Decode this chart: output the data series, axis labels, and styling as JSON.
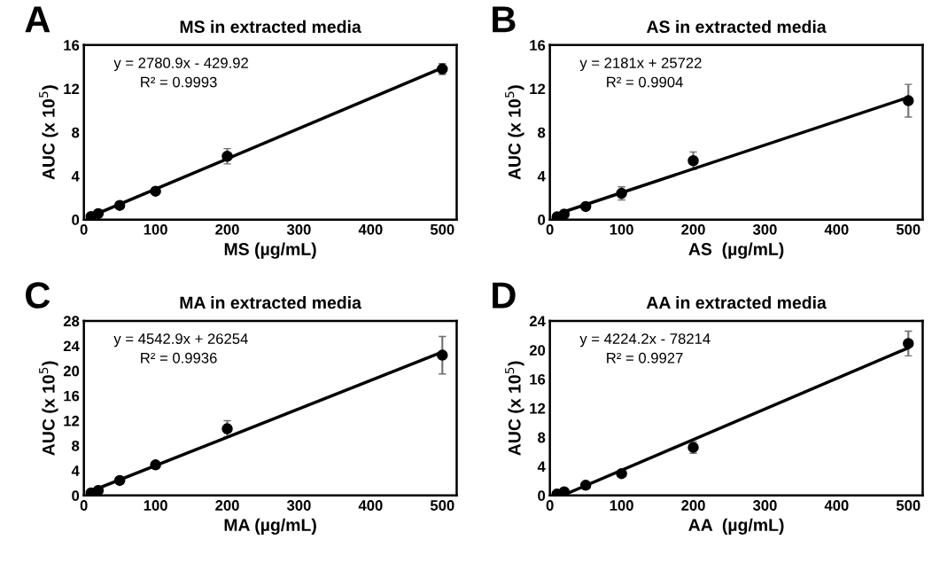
{
  "chart_data": [
    {
      "type": "scatter",
      "title": "MS in extracted media",
      "xlabel": "MS (µg/mL)",
      "ylabel": "AUC (x 10$^{5}$)",
      "annotations": [
        "A",
        "y = 2780.9x - 429.92",
        "R² = 0.9993"
      ],
      "xlim": [
        0,
        520
      ],
      "xticks": [
        0,
        100,
        200,
        300,
        400,
        500
      ],
      "ylim": [
        0,
        16
      ],
      "yticks": [
        0,
        4,
        8,
        12,
        16
      ],
      "legend": false,
      "series": [
        {
          "color": "#000000",
          "marker": "circle",
          "x": [
            10,
            20,
            50,
            100,
            200,
            500
          ],
          "values": [
            0.28,
            0.55,
            1.3,
            2.6,
            5.8,
            13.8
          ],
          "errors": [
            null,
            null,
            null,
            null,
            0.7,
            0.5
          ]
        },
        {
          "type": "line",
          "marker": "none",
          "color": "#000000",
          "x": [
            10,
            500
          ],
          "values": [
            0.3,
            13.9
          ]
        }
      ]
    },
    {
      "type": "scatter",
      "title": "AS in extracted media",
      "xlabel": "AS  (µg/mL)",
      "ylabel": "AUC (x 10$^{5}$)",
      "annotations": [
        "B",
        "y = 2181x + 25722",
        "R² = 0.9904"
      ],
      "xlim": [
        0,
        520
      ],
      "xticks": [
        0,
        100,
        200,
        300,
        400,
        500
      ],
      "ylim": [
        0,
        16
      ],
      "yticks": [
        0,
        4,
        8,
        12,
        16
      ],
      "legend": false,
      "series": [
        {
          "color": "#000000",
          "marker": "circle",
          "x": [
            10,
            20,
            50,
            100,
            200,
            500
          ],
          "values": [
            0.25,
            0.5,
            1.2,
            2.4,
            5.4,
            10.9
          ],
          "errors": [
            null,
            null,
            null,
            0.6,
            0.8,
            1.5
          ]
        },
        {
          "type": "line",
          "marker": "none",
          "color": "#000000",
          "x": [
            10,
            500
          ],
          "values": [
            0.5,
            11.2
          ]
        }
      ]
    },
    {
      "type": "scatter",
      "title": "MA in extracted media",
      "xlabel": "MA (µg/mL)",
      "ylabel": "AUC (x 10$^{5}$)",
      "annotations": [
        "C",
        "y = 4542.9x + 26254",
        "R² = 0.9936"
      ],
      "xlim": [
        0,
        520
      ],
      "xticks": [
        0,
        100,
        200,
        300,
        400,
        500
      ],
      "ylim": [
        0,
        28
      ],
      "yticks": [
        0,
        4,
        8,
        12,
        16,
        20,
        24,
        28
      ],
      "legend": false,
      "series": [
        {
          "color": "#000000",
          "marker": "circle",
          "x": [
            10,
            20,
            50,
            100,
            200,
            500
          ],
          "values": [
            0.4,
            0.8,
            2.4,
            4.9,
            10.7,
            22.5
          ],
          "errors": [
            null,
            null,
            null,
            null,
            1.3,
            3.0
          ]
        },
        {
          "type": "line",
          "marker": "none",
          "color": "#000000",
          "x": [
            10,
            500
          ],
          "values": [
            0.7,
            23.0
          ]
        }
      ]
    },
    {
      "type": "scatter",
      "title": "AA in extracted media",
      "xlabel": "AA  (µg/mL)",
      "ylabel": "AUC (x 10$^{5}$)",
      "annotations": [
        "D",
        "y = 4224.2x - 78214",
        "R² = 0.9927"
      ],
      "xlim": [
        0,
        520
      ],
      "xticks": [
        0,
        100,
        200,
        300,
        400,
        500
      ],
      "ylim": [
        0,
        24
      ],
      "yticks": [
        0,
        4,
        8,
        12,
        16,
        20,
        24
      ],
      "legend": false,
      "series": [
        {
          "color": "#000000",
          "marker": "circle",
          "x": [
            10,
            20,
            50,
            100,
            200,
            500
          ],
          "values": [
            0.2,
            0.5,
            1.4,
            3.0,
            6.6,
            20.9
          ],
          "errors": [
            null,
            null,
            null,
            null,
            0.8,
            1.7
          ]
        },
        {
          "type": "line",
          "marker": "none",
          "color": "#000000",
          "x": [
            20,
            500
          ],
          "values": [
            0.1,
            20.3
          ]
        }
      ]
    }
  ]
}
